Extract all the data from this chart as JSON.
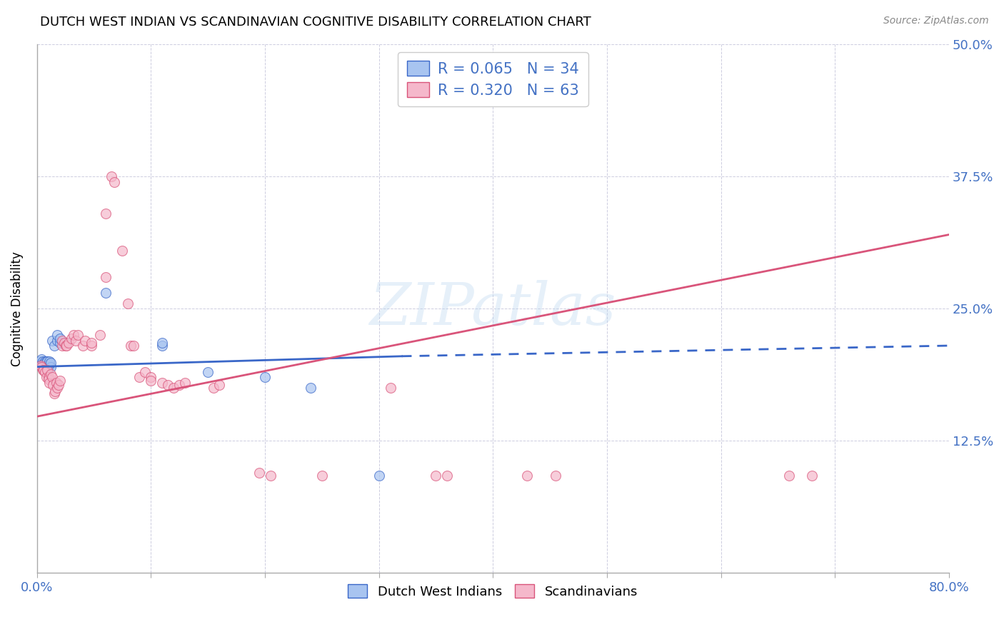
{
  "title": "DUTCH WEST INDIAN VS SCANDINAVIAN COGNITIVE DISABILITY CORRELATION CHART",
  "source": "Source: ZipAtlas.com",
  "ylabel": "Cognitive Disability",
  "xlim": [
    0.0,
    0.8
  ],
  "ylim": [
    0.0,
    0.5
  ],
  "xticks": [
    0.0,
    0.1,
    0.2,
    0.3,
    0.4,
    0.5,
    0.6,
    0.7,
    0.8
  ],
  "yticks": [
    0.0,
    0.125,
    0.25,
    0.375,
    0.5
  ],
  "ytick_labels": [
    "",
    "12.5%",
    "25.0%",
    "37.5%",
    "50.0%"
  ],
  "blue_R": 0.065,
  "blue_N": 34,
  "pink_R": 0.32,
  "pink_N": 63,
  "blue_color": "#a8c4f0",
  "pink_color": "#f5b8cb",
  "blue_line_color": "#3a67c8",
  "pink_line_color": "#d9547a",
  "legend_text_color": "#4472c4",
  "blue_line": {
    "x0": 0.0,
    "y0": 0.195,
    "x1": 0.32,
    "y1": 0.205,
    "x_dash_end": 0.8,
    "y_dash_end": 0.215
  },
  "pink_line": {
    "x0": 0.0,
    "y0": 0.148,
    "x1": 0.8,
    "y1": 0.32
  },
  "blue_points": [
    [
      0.002,
      0.2
    ],
    [
      0.003,
      0.198
    ],
    [
      0.004,
      0.196
    ],
    [
      0.004,
      0.202
    ],
    [
      0.005,
      0.196
    ],
    [
      0.005,
      0.2
    ],
    [
      0.006,
      0.195
    ],
    [
      0.006,
      0.198
    ],
    [
      0.007,
      0.196
    ],
    [
      0.007,
      0.2
    ],
    [
      0.008,
      0.196
    ],
    [
      0.008,
      0.2
    ],
    [
      0.009,
      0.196
    ],
    [
      0.009,
      0.2
    ],
    [
      0.01,
      0.196
    ],
    [
      0.01,
      0.195
    ],
    [
      0.011,
      0.198
    ],
    [
      0.011,
      0.2
    ],
    [
      0.012,
      0.195
    ],
    [
      0.012,
      0.199
    ],
    [
      0.013,
      0.22
    ],
    [
      0.015,
      0.215
    ],
    [
      0.018,
      0.22
    ],
    [
      0.018,
      0.225
    ],
    [
      0.02,
      0.218
    ],
    [
      0.02,
      0.222
    ],
    [
      0.025,
      0.218
    ],
    [
      0.06,
      0.265
    ],
    [
      0.11,
      0.215
    ],
    [
      0.11,
      0.218
    ],
    [
      0.15,
      0.19
    ],
    [
      0.2,
      0.185
    ],
    [
      0.24,
      0.175
    ],
    [
      0.3,
      0.092
    ]
  ],
  "pink_points": [
    [
      0.003,
      0.196
    ],
    [
      0.004,
      0.195
    ],
    [
      0.005,
      0.192
    ],
    [
      0.006,
      0.192
    ],
    [
      0.007,
      0.19
    ],
    [
      0.008,
      0.185
    ],
    [
      0.009,
      0.192
    ],
    [
      0.01,
      0.185
    ],
    [
      0.01,
      0.183
    ],
    [
      0.011,
      0.18
    ],
    [
      0.012,
      0.188
    ],
    [
      0.013,
      0.185
    ],
    [
      0.014,
      0.178
    ],
    [
      0.015,
      0.17
    ],
    [
      0.016,
      0.172
    ],
    [
      0.017,
      0.18
    ],
    [
      0.018,
      0.175
    ],
    [
      0.019,
      0.178
    ],
    [
      0.02,
      0.182
    ],
    [
      0.022,
      0.215
    ],
    [
      0.022,
      0.22
    ],
    [
      0.024,
      0.218
    ],
    [
      0.025,
      0.215
    ],
    [
      0.026,
      0.215
    ],
    [
      0.028,
      0.218
    ],
    [
      0.03,
      0.222
    ],
    [
      0.032,
      0.225
    ],
    [
      0.034,
      0.22
    ],
    [
      0.036,
      0.225
    ],
    [
      0.04,
      0.215
    ],
    [
      0.042,
      0.22
    ],
    [
      0.048,
      0.215
    ],
    [
      0.048,
      0.218
    ],
    [
      0.055,
      0.225
    ],
    [
      0.06,
      0.28
    ],
    [
      0.06,
      0.34
    ],
    [
      0.065,
      0.375
    ],
    [
      0.068,
      0.37
    ],
    [
      0.075,
      0.305
    ],
    [
      0.08,
      0.255
    ],
    [
      0.082,
      0.215
    ],
    [
      0.085,
      0.215
    ],
    [
      0.09,
      0.185
    ],
    [
      0.095,
      0.19
    ],
    [
      0.1,
      0.185
    ],
    [
      0.1,
      0.182
    ],
    [
      0.11,
      0.18
    ],
    [
      0.115,
      0.178
    ],
    [
      0.12,
      0.175
    ],
    [
      0.125,
      0.178
    ],
    [
      0.13,
      0.18
    ],
    [
      0.155,
      0.175
    ],
    [
      0.16,
      0.178
    ],
    [
      0.195,
      0.095
    ],
    [
      0.205,
      0.092
    ],
    [
      0.25,
      0.092
    ],
    [
      0.31,
      0.175
    ],
    [
      0.35,
      0.092
    ],
    [
      0.36,
      0.092
    ],
    [
      0.43,
      0.092
    ],
    [
      0.455,
      0.092
    ],
    [
      0.66,
      0.092
    ],
    [
      0.68,
      0.092
    ]
  ]
}
